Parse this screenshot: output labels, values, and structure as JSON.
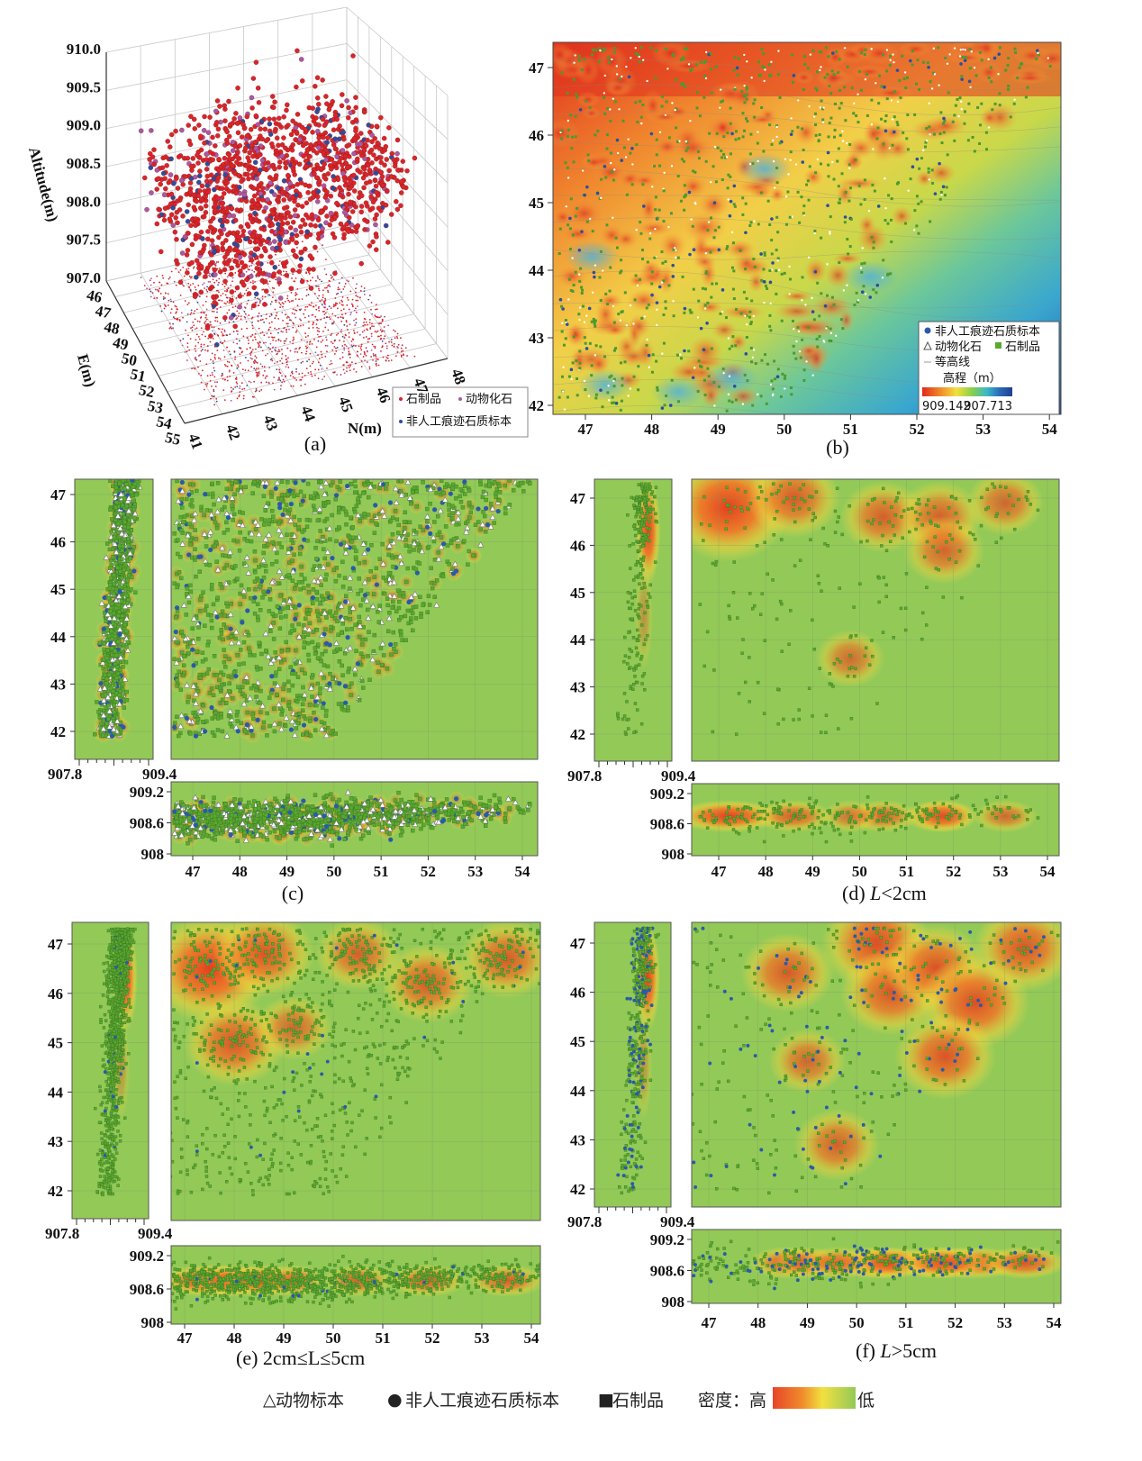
{
  "chart_data": [
    {
      "panel": "a",
      "type": "scatter3d",
      "caption": "(a)",
      "zlabel": "Altitude(m)",
      "xlabel": "N(m)",
      "ylabel": "E(m)",
      "z_ticks": [
        "907.0",
        "907.5",
        "908.0",
        "908.5",
        "909.0",
        "909.5",
        "910.0"
      ],
      "n_ticks": [
        "41",
        "42",
        "43",
        "44",
        "45",
        "46",
        "47",
        "48"
      ],
      "e_ticks": [
        "46",
        "47",
        "48",
        "49",
        "50",
        "51",
        "52",
        "53",
        "54",
        "55"
      ],
      "legend": [
        {
          "label": "石制品",
          "color": "#d7262b"
        },
        {
          "label": "动物化石",
          "color": "#a65aa8"
        },
        {
          "label": "非人工痕迹石质标本",
          "color": "#2a4f9e"
        }
      ]
    },
    {
      "panel": "b",
      "type": "heatmap",
      "caption": "(b)",
      "x_ticks": [
        "47",
        "48",
        "49",
        "50",
        "51",
        "52",
        "53",
        "54"
      ],
      "y_ticks": [
        "42",
        "43",
        "44",
        "45",
        "46",
        "47"
      ],
      "legend": [
        {
          "label": "非人工痕迹石质标本",
          "marker": "circle",
          "color": "#2a5aa8"
        },
        {
          "label": "动物化石",
          "marker": "triangle",
          "color": "#ffffff"
        },
        {
          "label": "石制品",
          "marker": "square",
          "color": "#5aa832"
        },
        {
          "label": "等高线",
          "marker": "line",
          "color": "#999999"
        }
      ],
      "colorbar": {
        "title": "高程（m）",
        "max_label": "909.142",
        "min_label": "907.713",
        "colors": [
          "#e02a1e",
          "#f08a2a",
          "#f2e040",
          "#8ccf4a",
          "#3ab8c8",
          "#2a6ab8",
          "#1f3f90"
        ]
      }
    },
    {
      "panel": "c",
      "type": "scatter",
      "caption": "(c)",
      "x_ticks": [
        "47",
        "48",
        "49",
        "50",
        "51",
        "52",
        "53",
        "54"
      ],
      "y_ticks": [
        "42",
        "43",
        "44",
        "45",
        "46",
        "47"
      ],
      "side_x_ticks": [
        "907.8",
        "909.4"
      ],
      "bottom_y_ticks": [
        "909.2",
        "908.6",
        "908"
      ]
    },
    {
      "panel": "d",
      "type": "heatmap",
      "caption_prefix": "(d) ",
      "caption_var": "L",
      "caption_suffix": "<2cm",
      "x_ticks": [
        "47",
        "48",
        "49",
        "50",
        "51",
        "52",
        "53",
        "54"
      ],
      "y_ticks": [
        "42",
        "43",
        "44",
        "45",
        "46",
        "47"
      ],
      "side_x_ticks": [
        "907.8",
        "909.4"
      ],
      "bottom_y_ticks": [
        "909.2",
        "908.6",
        "908"
      ],
      "density_peaks": [
        [
          47.2,
          46.8,
          1.0
        ],
        [
          48.6,
          47.0,
          0.6
        ],
        [
          50.5,
          46.6,
          0.5
        ],
        [
          51.7,
          46.6,
          0.5
        ],
        [
          51.8,
          45.9,
          0.45
        ],
        [
          53.1,
          46.9,
          0.4
        ],
        [
          49.8,
          43.6,
          0.3
        ]
      ]
    },
    {
      "panel": "e",
      "type": "heatmap",
      "caption_prefix": "(e)  ",
      "caption_var": "2cm≤L≤5cm",
      "caption_suffix": "",
      "x_ticks": [
        "47",
        "48",
        "49",
        "50",
        "51",
        "52",
        "53",
        "54"
      ],
      "y_ticks": [
        "42",
        "43",
        "44",
        "45",
        "46",
        "47"
      ],
      "side_x_ticks": [
        "907.8",
        "909.4"
      ],
      "bottom_y_ticks": [
        "909.2",
        "908.6",
        "908"
      ],
      "density_peaks": [
        [
          47.5,
          46.5,
          1.0
        ],
        [
          48.0,
          45.0,
          0.7
        ],
        [
          48.6,
          46.8,
          0.7
        ],
        [
          50.5,
          46.8,
          0.5
        ],
        [
          51.9,
          46.2,
          0.6
        ],
        [
          53.5,
          46.7,
          0.6
        ],
        [
          49.2,
          45.3,
          0.4
        ]
      ]
    },
    {
      "panel": "f",
      "type": "heatmap",
      "caption_prefix": "(f) ",
      "caption_var": "L",
      "caption_suffix": ">5cm",
      "x_ticks": [
        "47",
        "48",
        "49",
        "50",
        "51",
        "52",
        "53",
        "54"
      ],
      "y_ticks": [
        "42",
        "43",
        "44",
        "45",
        "46",
        "47"
      ],
      "side_x_ticks": [
        "907.8",
        "909.4"
      ],
      "bottom_y_ticks": [
        "909.2",
        "908.6",
        "908"
      ],
      "density_peaks": [
        [
          48.6,
          46.4,
          0.6
        ],
        [
          50.4,
          47.0,
          0.8
        ],
        [
          50.7,
          46.0,
          0.7
        ],
        [
          51.6,
          46.5,
          0.7
        ],
        [
          52.4,
          45.8,
          0.8
        ],
        [
          51.8,
          44.7,
          0.7
        ],
        [
          53.4,
          46.9,
          0.7
        ],
        [
          49.0,
          44.6,
          0.4
        ],
        [
          49.6,
          42.9,
          0.5
        ]
      ]
    }
  ],
  "legend": {
    "items": [
      {
        "symbol": "△",
        "label": "动物标本",
        "color": "#888888"
      },
      {
        "symbol": "●",
        "label": "非人工痕迹石质标本",
        "color": "#2a5aa8"
      },
      {
        "symbol": "■",
        "label": "石制品",
        "color": "#5aa832"
      }
    ],
    "density_label": "密度：高",
    "density_low": "低",
    "density_colors": [
      "#e8452a",
      "#f08a2a",
      "#f2e040",
      "#93c957"
    ]
  }
}
